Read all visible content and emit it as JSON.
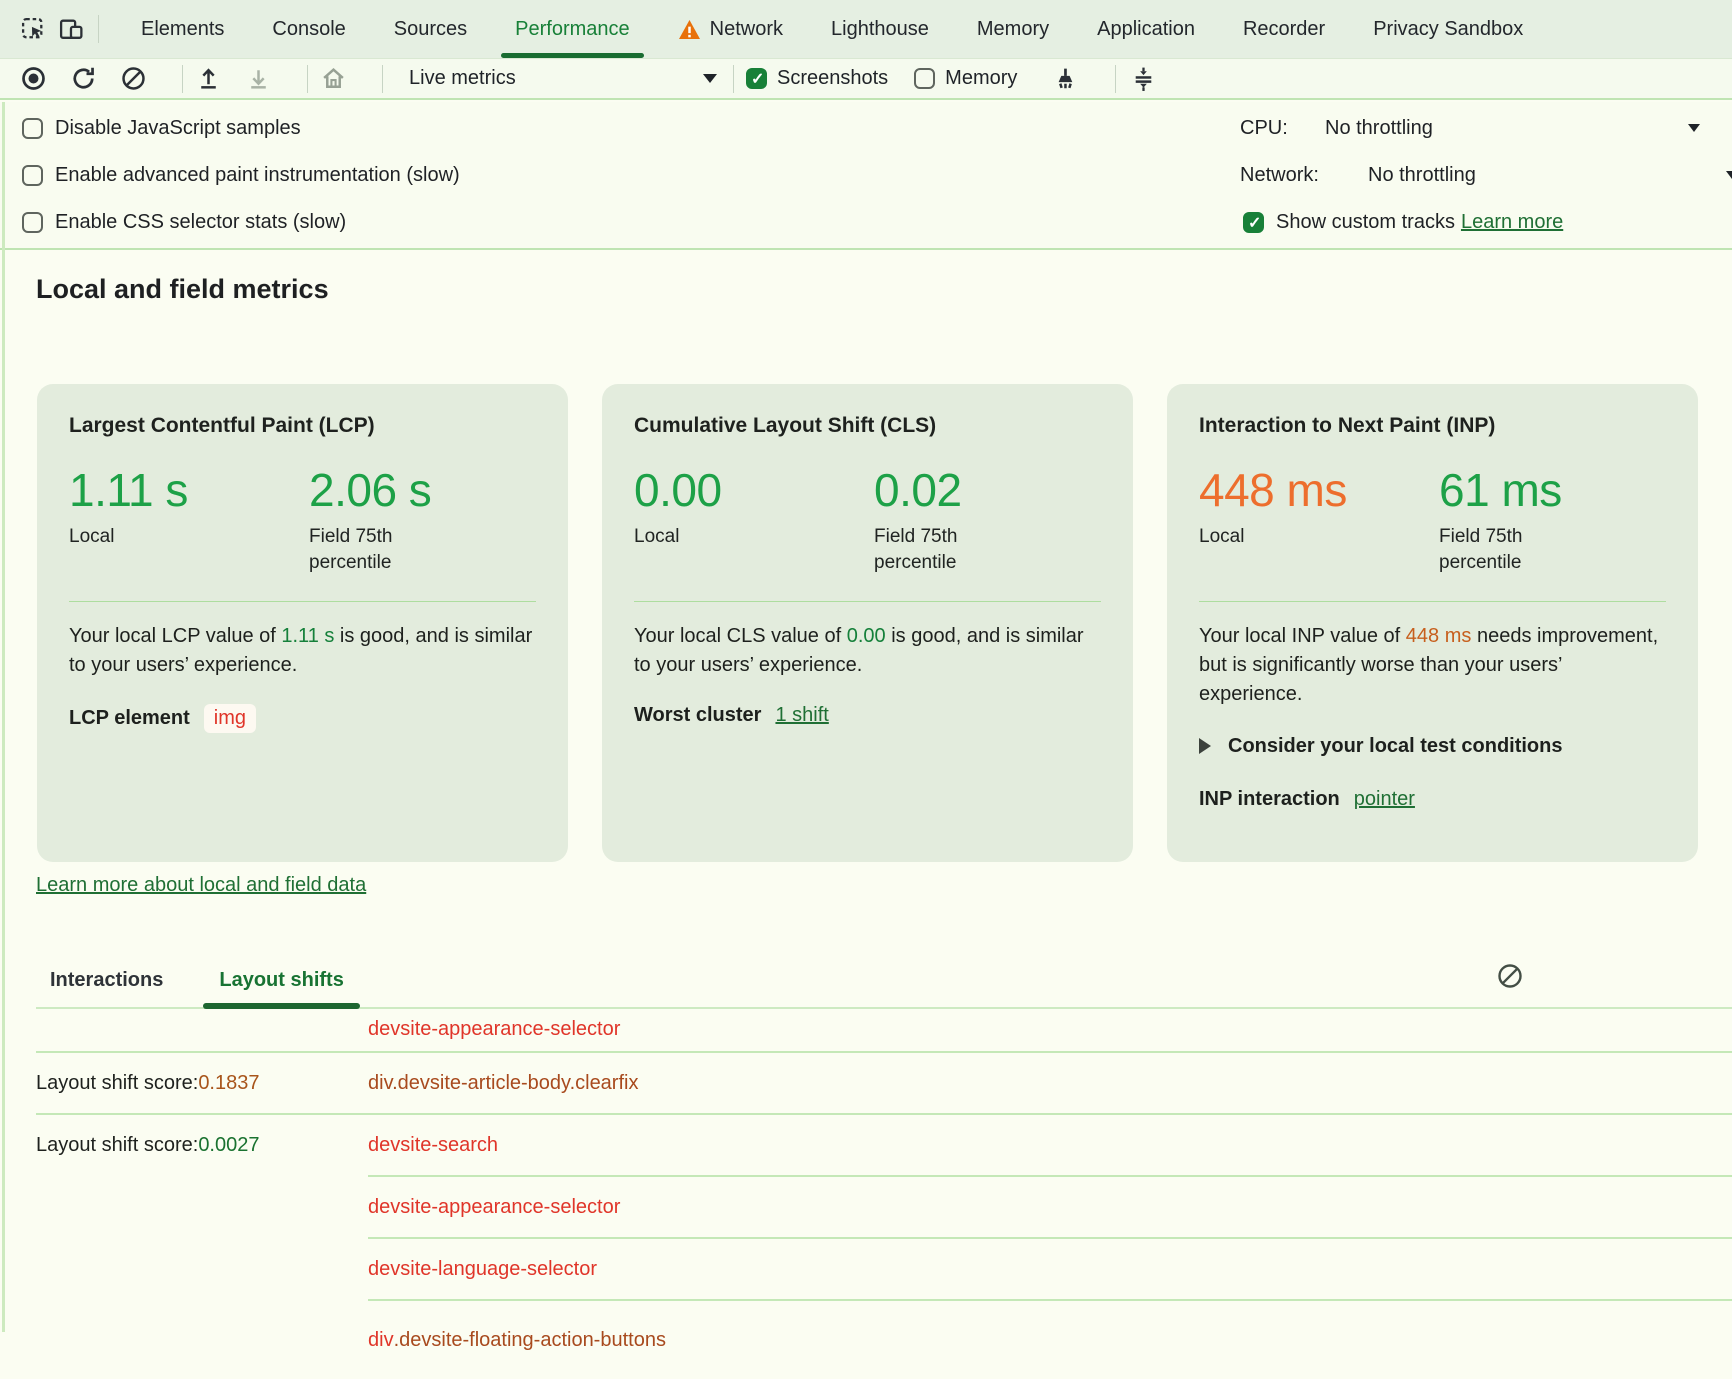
{
  "colors": {
    "accent_green": "#188038",
    "good_green": "#1da147",
    "warn_orange": "#ed6e2d",
    "link_green": "#1f6f34",
    "link_red": "#e03529",
    "link_brick": "#a84a1e"
  },
  "tabbar": {
    "tabs": [
      {
        "label": "Elements"
      },
      {
        "label": "Console"
      },
      {
        "label": "Sources"
      },
      {
        "label": "Performance",
        "selected": true
      },
      {
        "label": "Network",
        "warning": true
      },
      {
        "label": "Lighthouse"
      },
      {
        "label": "Memory"
      },
      {
        "label": "Application"
      },
      {
        "label": "Recorder"
      },
      {
        "label": "Privacy Sandbox"
      }
    ]
  },
  "toolbar": {
    "mode_dropdown": "Live metrics",
    "screenshots": {
      "label": "Screenshots",
      "checked": true
    },
    "memory": {
      "label": "Memory",
      "checked": false
    }
  },
  "options": {
    "left": [
      {
        "label": "Disable JavaScript samples",
        "checked": false
      },
      {
        "label": "Enable advanced paint instrumentation (slow)",
        "checked": false
      },
      {
        "label": "Enable CSS selector stats (slow)",
        "checked": false
      }
    ],
    "cpu": {
      "label": "CPU:",
      "value": "No throttling"
    },
    "network": {
      "label": "Network:",
      "value": "No throttling"
    },
    "custom_tracks": {
      "label": "Show custom tracks",
      "checked": true,
      "link": "Learn more"
    }
  },
  "metrics": {
    "heading": "Local and field metrics",
    "learn_more": "Learn more about local and field data",
    "cards": [
      {
        "title": "Largest Contentful Paint (LCP)",
        "local_value": "1.11 s",
        "local_status": "good",
        "local_label": "Local",
        "field_value": "2.06 s",
        "field_status": "good",
        "field_label": "Field 75th percentile",
        "desc_pre": "Your local LCP value of ",
        "desc_value": "1.11 s",
        "desc_value_status": "good",
        "desc_post": " is good, and is similar to your users’ experience.",
        "footer_label": "LCP element",
        "footer_chip": "img"
      },
      {
        "title": "Cumulative Layout Shift (CLS)",
        "local_value": "0.00",
        "local_status": "good",
        "local_label": "Local",
        "field_value": "0.02",
        "field_status": "good",
        "field_label": "Field 75th percentile",
        "desc_pre": "Your local CLS value of ",
        "desc_value": "0.00",
        "desc_value_status": "good",
        "desc_post": " is good, and is similar to your users’ experience.",
        "footer_label": "Worst cluster",
        "footer_link": "1 shift"
      },
      {
        "title": "Interaction to Next Paint (INP)",
        "local_value": "448 ms",
        "local_status": "warn",
        "local_label": "Local",
        "field_value": "61 ms",
        "field_status": "good",
        "field_label": "Field 75th percentile",
        "desc_pre": "Your local INP value of ",
        "desc_value": "448 ms",
        "desc_value_status": "warn",
        "desc_post": " needs improvement, but is significantly worse than your users’ experience.",
        "expander_label": "Consider your local test conditions",
        "footer_label": "INP interaction",
        "footer_link": "pointer"
      }
    ]
  },
  "logs": {
    "tabs": [
      {
        "label": "Interactions"
      },
      {
        "label": "Layout shifts",
        "selected": true
      }
    ],
    "score_prefix": "Layout shift score: ",
    "rows": [
      {
        "element": "devsite-appearance-selector",
        "element_style": "red",
        "divider": "none"
      },
      {
        "score": "0.1837",
        "score_style": "orange",
        "element": "div.devsite-article-body.clearfix",
        "element_style": "brick",
        "divider": "full"
      },
      {
        "score": "0.0027",
        "score_style": "green",
        "element": "devsite-search",
        "element_style": "red",
        "divider": "full"
      },
      {
        "element": "devsite-appearance-selector",
        "element_style": "red",
        "divider": "partial"
      },
      {
        "element": "devsite-language-selector",
        "element_style": "red",
        "divider": "partial"
      },
      {
        "tag": "div",
        "element": ".devsite-floating-action-buttons",
        "element_style": "brick",
        "divider": "partial"
      }
    ]
  }
}
